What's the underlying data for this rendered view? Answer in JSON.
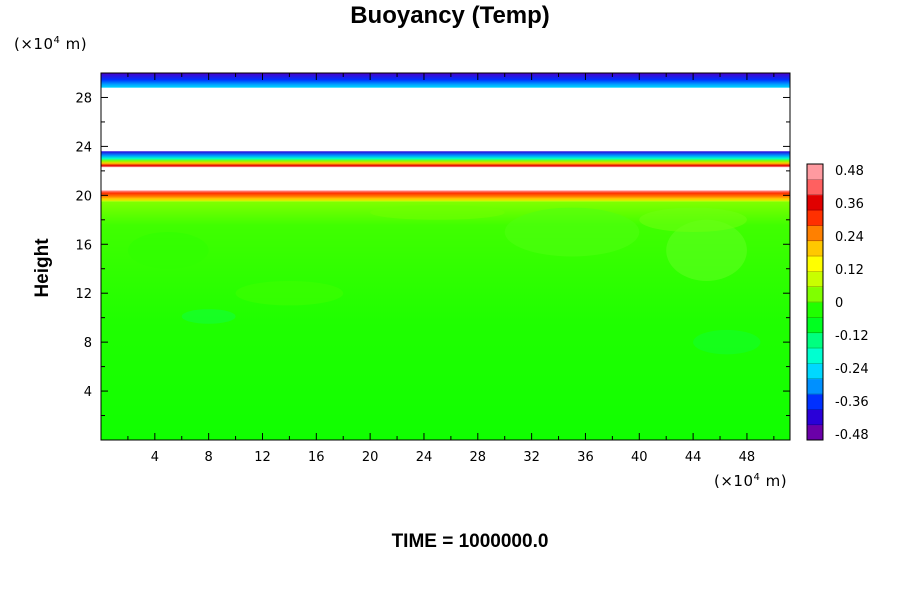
{
  "chart_data": {
    "type": "heatmap",
    "title": "Buoyancy (Temp)",
    "ylabel": "Height",
    "xlabel": "",
    "x_unit": {
      "prefix": "(×10",
      "exp": "4",
      "suffix": " m)"
    },
    "y_unit": {
      "prefix": "(×10",
      "exp": "4",
      "suffix": " m)"
    },
    "xlim": [
      0,
      51.2
    ],
    "ylim": [
      0,
      30
    ],
    "x_ticks": [
      4,
      8,
      12,
      16,
      20,
      24,
      28,
      32,
      36,
      40,
      44,
      48
    ],
    "y_ticks": [
      4,
      8,
      12,
      16,
      20,
      24,
      28
    ],
    "x_tick_labels": [
      "4",
      "8",
      "12",
      "16",
      "20",
      "24",
      "28",
      "32",
      "36",
      "40",
      "44",
      "48"
    ],
    "y_tick_labels": [
      "4",
      "8",
      "12",
      "16",
      "20",
      "24",
      "28"
    ],
    "colorbar": {
      "labels": [
        "0.48",
        "0.36",
        "0.24",
        "0.12",
        "0",
        "-0.12",
        "-0.24",
        "-0.36",
        "-0.48"
      ],
      "min": -0.48,
      "max": 0.48,
      "colors": [
        "#6a00a8",
        "#2a00d8",
        "#0030ff",
        "#0090ff",
        "#00d8ff",
        "#00ffd0",
        "#00ff80",
        "#00ff20",
        "#20ff00",
        "#80ff00",
        "#c8ff00",
        "#ffff00",
        "#ffc800",
        "#ff8000",
        "#ff3000",
        "#e00000",
        "#ff6060",
        "#ff9aa0"
      ]
    },
    "layers": [
      {
        "name": "top-boundary-band",
        "y_range": [
          28.8,
          30
        ],
        "value": -0.4
      },
      {
        "name": "upper-negative-band",
        "y_range": [
          23.0,
          23.6
        ],
        "value": -0.3
      },
      {
        "name": "upper-positive-band",
        "y_range": [
          22.3,
          22.9
        ],
        "value": 0.3
      },
      {
        "name": "lower-positive-band",
        "y_range": [
          19.5,
          20.4
        ],
        "value": 0.4
      },
      {
        "name": "interior",
        "y_range": [
          0,
          19.5
        ],
        "value": 0.0
      }
    ]
  },
  "footer": {
    "time_label": "TIME = 1000000.0"
  }
}
